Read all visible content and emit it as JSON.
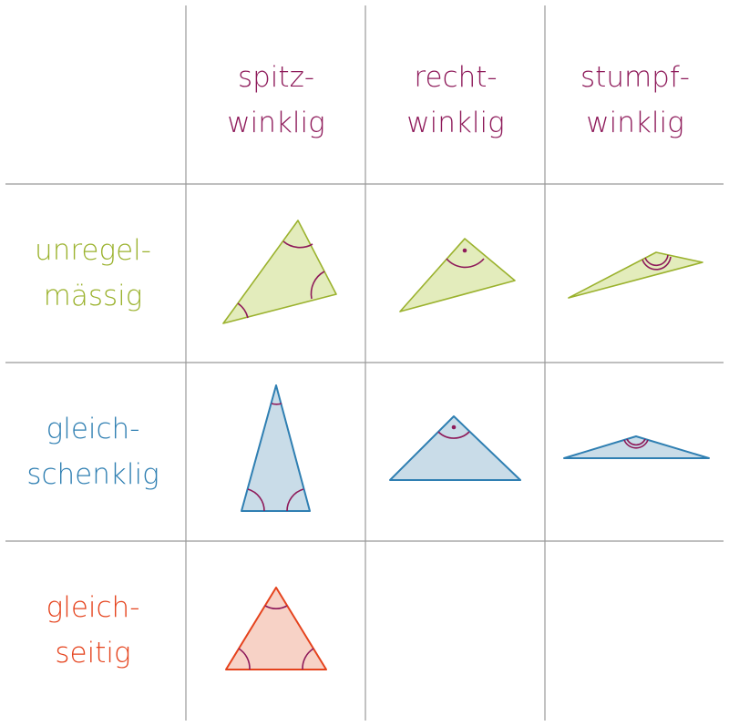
{
  "columns": [
    {
      "line1": "spitz-",
      "line2": "winklig"
    },
    {
      "line1": "recht-",
      "line2": "winklig"
    },
    {
      "line1": "stumpf-",
      "line2": "winklig"
    }
  ],
  "rows": [
    {
      "line1": "unregel-",
      "line2": "mässig",
      "color": "#9bb22e"
    },
    {
      "line1": "gleich-",
      "line2": "schenklig",
      "color": "#2f7fb2"
    },
    {
      "line1": "gleich-",
      "line2": "seitig",
      "color": "#e5431d"
    }
  ],
  "colors": {
    "header_text": "#8e1a5a",
    "angle_marks": "#8e1a5a",
    "grid_lines": "#999999",
    "unregelmaessig_fill": "#e3ecbc",
    "unregelmaessig_stroke": "#9bb22e",
    "gleichschenklig_fill": "#c9dce8",
    "gleichschenklig_stroke": "#2f7fb2",
    "gleichseitig_fill": "#f7d2c6",
    "gleichseitig_stroke": "#e5431d"
  }
}
